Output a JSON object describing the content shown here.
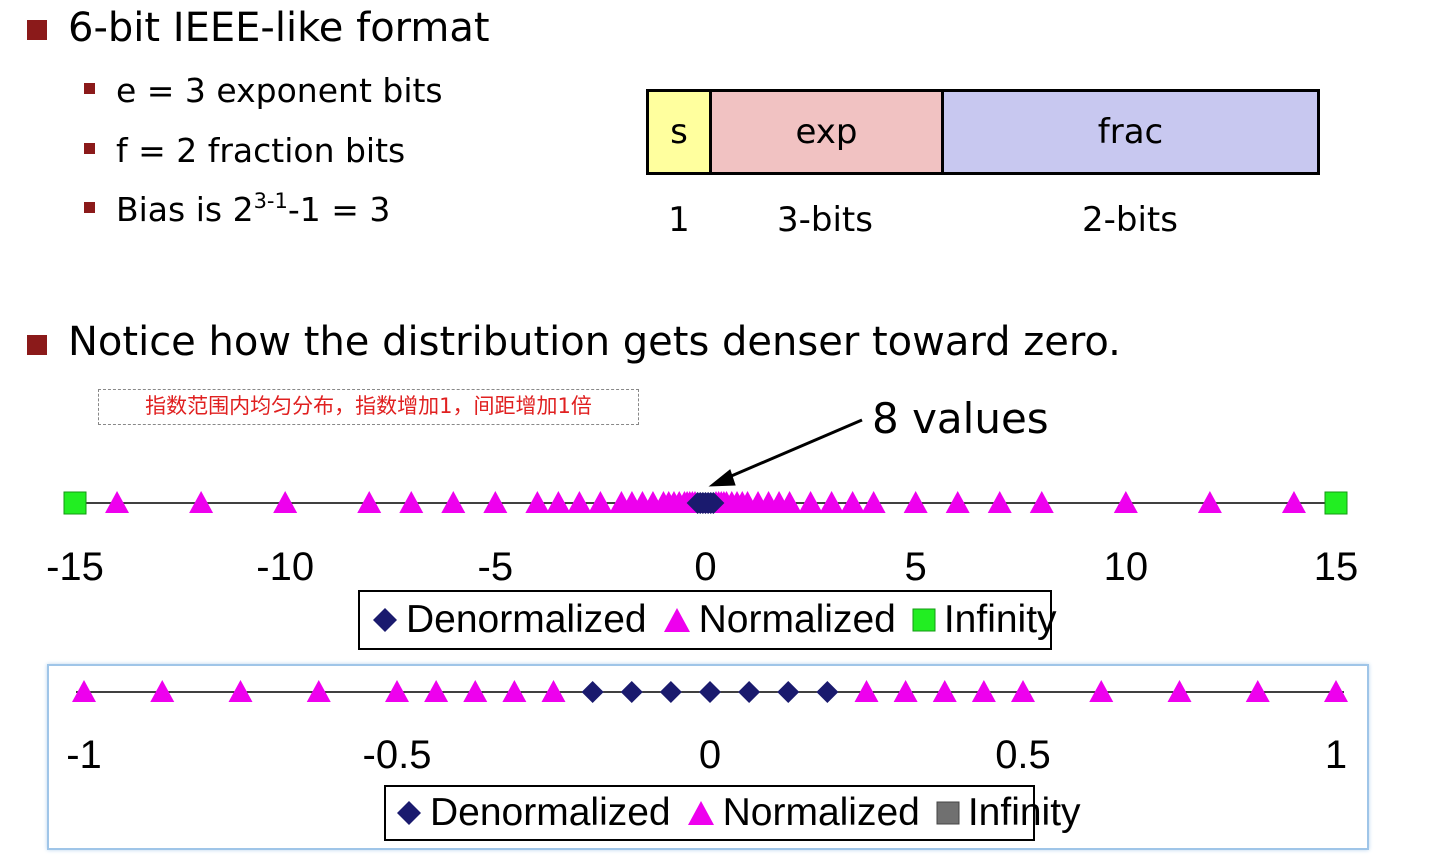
{
  "section1": {
    "heading": "6-bit IEEE-like format",
    "bullets": [
      "e = 3 exponent bits",
      "f = 2 fraction bits"
    ],
    "bias": {
      "prefix": "Bias is 2",
      "superscript": "3-1",
      "suffix": "-1 = 3"
    }
  },
  "format_diagram": {
    "fields": [
      "s",
      "exp",
      "frac"
    ],
    "field_widths": [
      "1",
      "3-bits",
      "2-bits"
    ],
    "colors": {
      "s": "#ffff9e",
      "exp": "#f1c2c2",
      "frac": "#c8c8f0"
    }
  },
  "section2": {
    "heading": "Notice how the distribution gets denser toward zero."
  },
  "note": "指数范围内均匀分布，指数增加1，间距增加1倍",
  "callout": "8 values",
  "legend": {
    "denormalized": "Denormalized",
    "normalized": "Normalized",
    "infinity": "Infinity"
  },
  "colors": {
    "denormalized": "#1a1a6e",
    "normalized": "#ee00ee",
    "infinity_top": "#22ee22",
    "infinity_bottom": "#707070",
    "bullet": "#8b1a1a",
    "note_text": "#e02020"
  },
  "chart_data": [
    {
      "type": "scatter",
      "title": "",
      "xlim": [
        -15,
        15
      ],
      "tick_labels": [
        "-15",
        "-10",
        "-5",
        "0",
        "5",
        "10",
        "15"
      ],
      "ticks": [
        -15,
        -10,
        -5,
        0,
        5,
        10,
        15
      ],
      "series": [
        {
          "name": "Denormalized",
          "marker": "diamond",
          "values": [
            -0.1875,
            -0.125,
            -0.0625,
            0,
            0.0625,
            0.125,
            0.1875
          ]
        },
        {
          "name": "Normalized",
          "marker": "triangle",
          "values": [
            -14,
            -12,
            -10,
            -8,
            -7,
            -6,
            -5,
            -4,
            -3.5,
            -3,
            -2.5,
            -2,
            -1.75,
            -1.5,
            -1.25,
            -1,
            -0.875,
            -0.75,
            -0.625,
            -0.5,
            -0.4375,
            -0.375,
            -0.3125,
            -0.25,
            0.25,
            0.3125,
            0.375,
            0.4375,
            0.5,
            0.625,
            0.75,
            0.875,
            1,
            1.25,
            1.5,
            1.75,
            2,
            2.5,
            3,
            3.5,
            4,
            5,
            6,
            7,
            8,
            10,
            12,
            14
          ]
        },
        {
          "name": "Infinity",
          "marker": "square",
          "values": [
            -15,
            15
          ]
        }
      ]
    },
    {
      "type": "scatter",
      "title": "",
      "xlim": [
        -1,
        1
      ],
      "tick_labels": [
        "-1",
        "-0.5",
        "0",
        "0.5",
        "1"
      ],
      "ticks": [
        -1,
        -0.5,
        0,
        0.5,
        1
      ],
      "series": [
        {
          "name": "Denormalized",
          "marker": "diamond",
          "values": [
            -0.1875,
            -0.125,
            -0.0625,
            0,
            0.0625,
            0.125,
            0.1875
          ]
        },
        {
          "name": "Normalized",
          "marker": "triangle",
          "values": [
            -1,
            -0.875,
            -0.75,
            -0.625,
            -0.5,
            -0.4375,
            -0.375,
            -0.3125,
            -0.25,
            0.25,
            0.3125,
            0.375,
            0.4375,
            0.5,
            0.625,
            0.75,
            0.875,
            1
          ]
        },
        {
          "name": "Infinity",
          "marker": "square",
          "values": []
        }
      ]
    }
  ]
}
